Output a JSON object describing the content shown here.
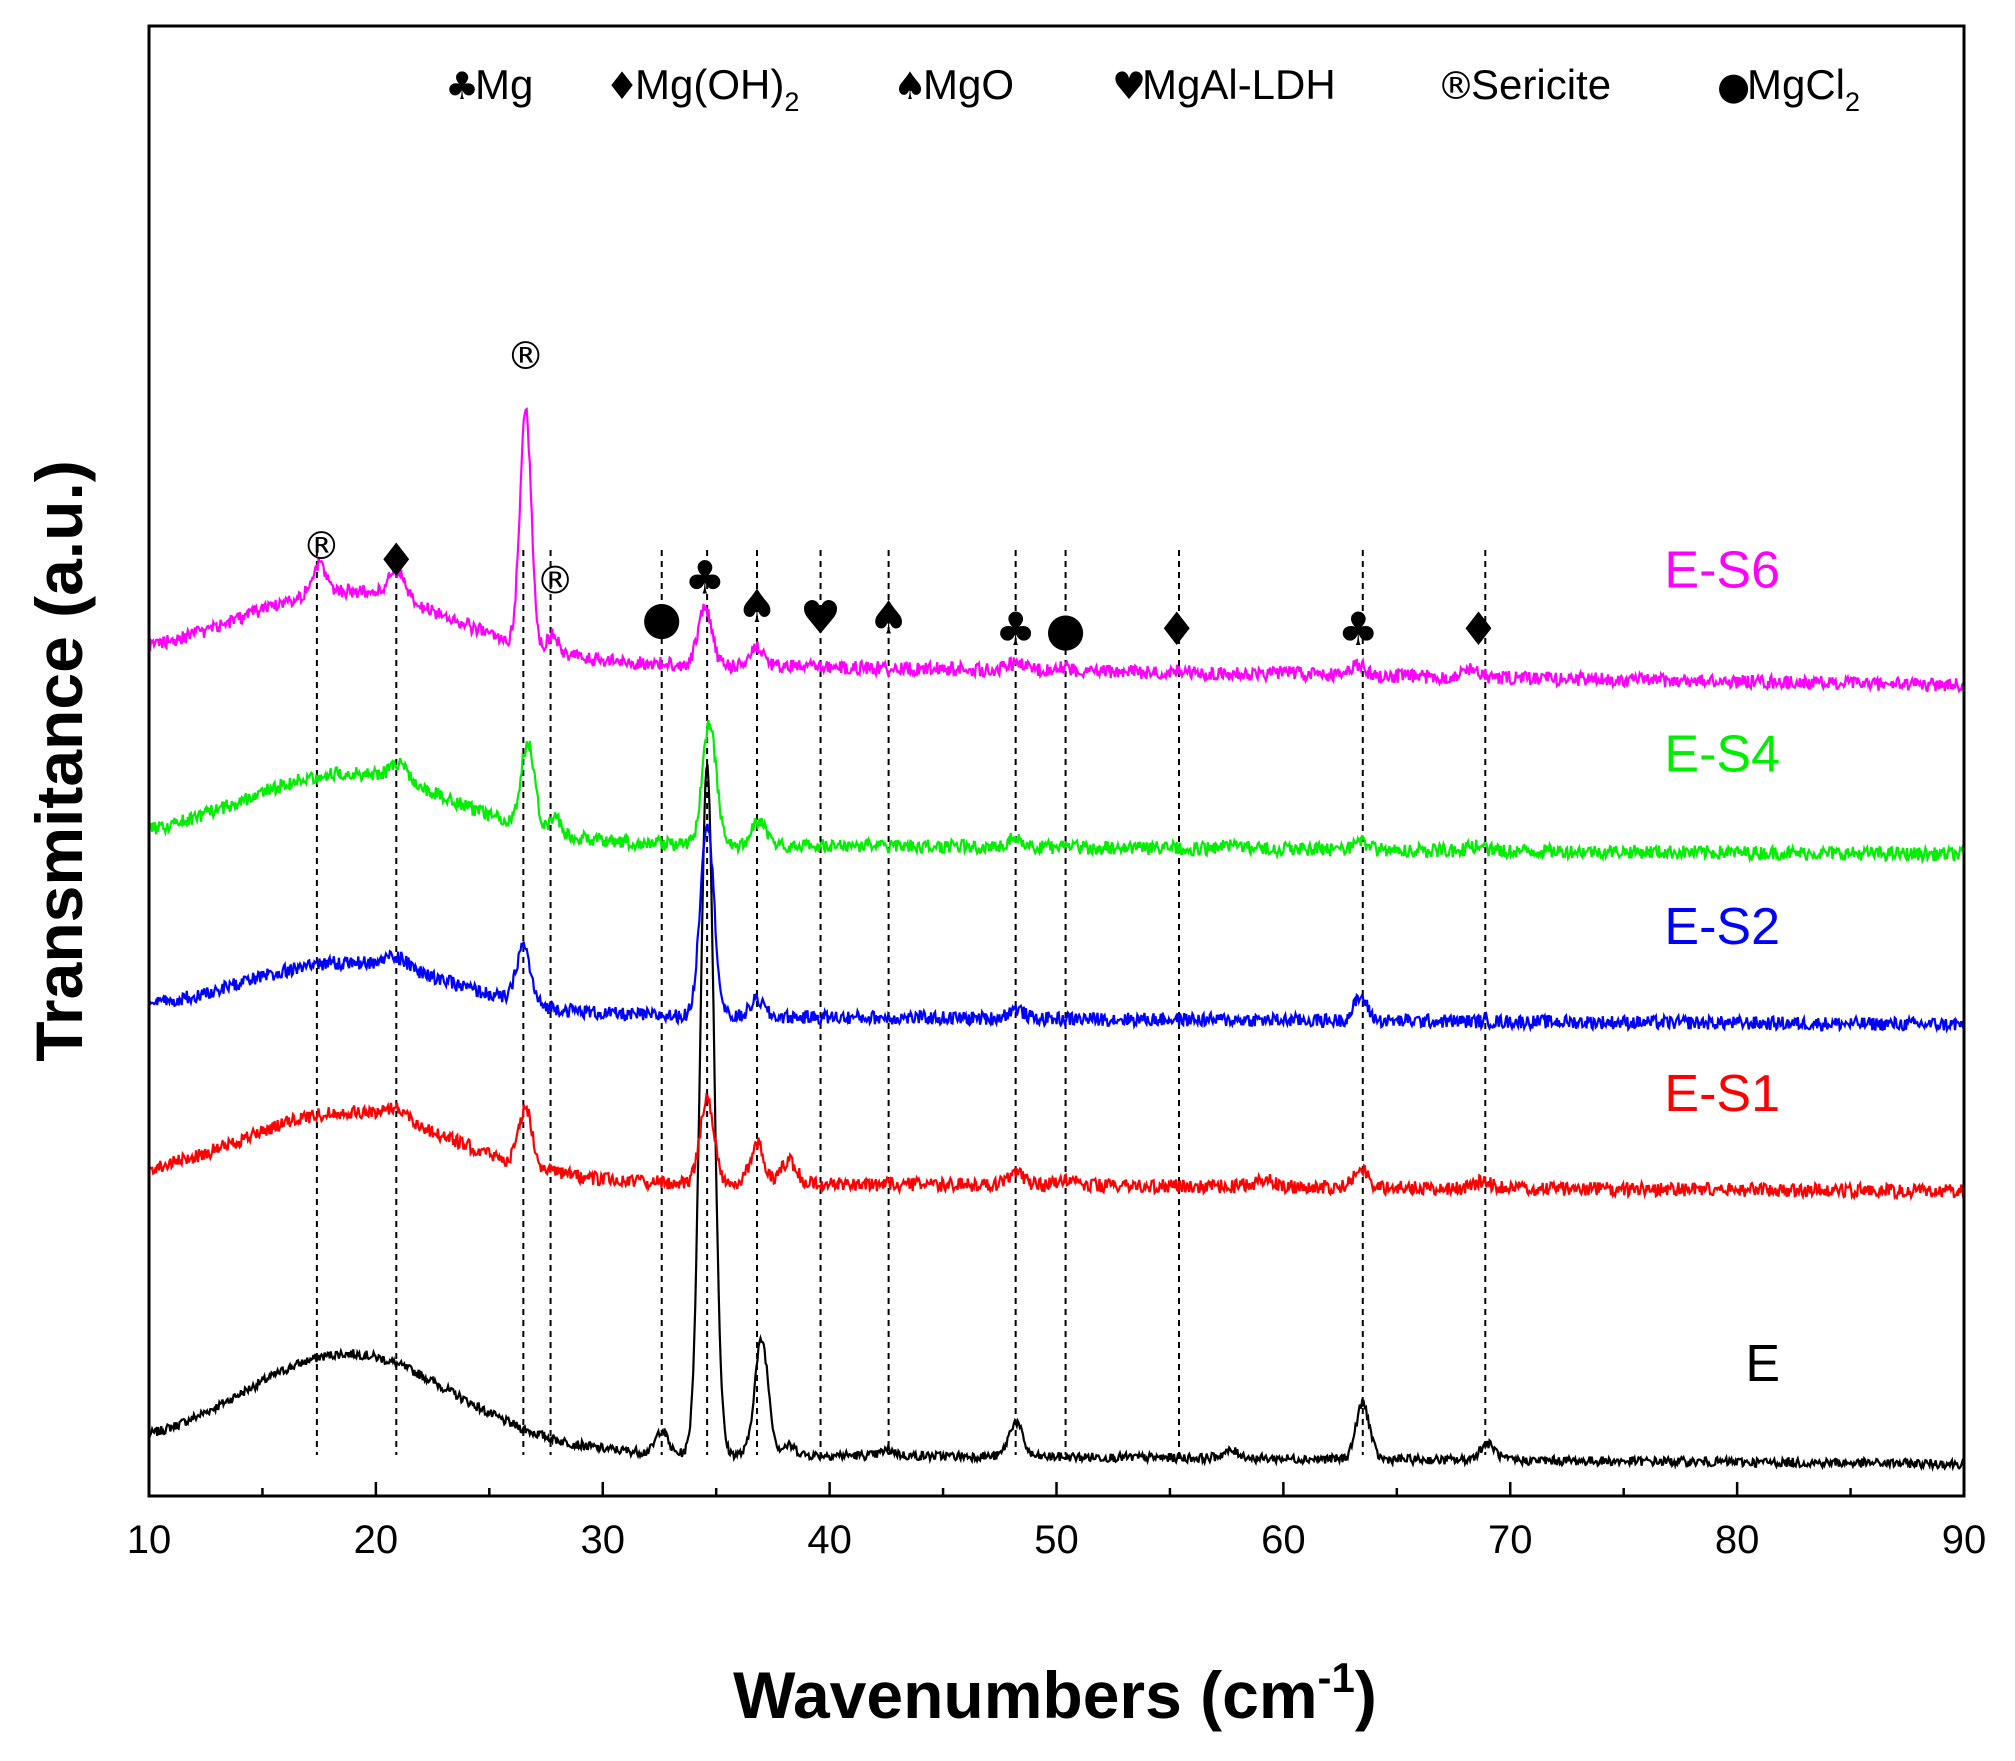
{
  "chart_data": {
    "type": "line",
    "title": "",
    "xlabel": "Wavenumbers (cm",
    "xlabel_sup": "-1",
    "xlabel_close": ")",
    "ylabel": "Transmitance (a.u.)",
    "xlim": [
      10,
      90
    ],
    "x_ticks": [
      "10",
      "20",
      "30",
      "40",
      "50",
      "60",
      "70",
      "80",
      "90"
    ],
    "y_ticks_shown": false,
    "grid": false,
    "legend_placement": "top",
    "legend": [
      {
        "symbol": "♣",
        "label": "Mg",
        "sub": ""
      },
      {
        "symbol": "♦",
        "label": "Mg(OH)",
        "sub": "2"
      },
      {
        "symbol": "♠",
        "label": "MgO",
        "sub": ""
      },
      {
        "symbol": "♥",
        "label": "MgAl-LDH",
        "sub": ""
      },
      {
        "symbol": "®",
        "label": "Sericite",
        "sub": ""
      },
      {
        "symbol": "●",
        "label": "MgCl",
        "sub": "2"
      }
    ],
    "series": [
      {
        "name": "E",
        "color": "#000000",
        "baseline": 0.0,
        "end": -0.012,
        "hump": 0.085,
        "noise": 0.004,
        "peaks": [
          [
            32.6,
            0.02,
            0.25
          ],
          [
            34.6,
            0.6,
            0.3
          ],
          [
            37.0,
            0.1,
            0.3
          ],
          [
            38.2,
            0.008,
            0.3
          ],
          [
            42.6,
            0.005,
            0.3
          ],
          [
            48.2,
            0.03,
            0.3
          ],
          [
            57.7,
            0.006,
            0.4
          ],
          [
            63.5,
            0.048,
            0.3
          ],
          [
            69.0,
            0.014,
            0.35
          ]
        ]
      },
      {
        "name": "E-S1",
        "color": "#ff0000",
        "baseline": 0.235,
        "end": 0.225,
        "hump": 0.06,
        "noise": 0.006,
        "peaks": [
          [
            20.9,
            0.01,
            0.5
          ],
          [
            26.6,
            0.05,
            0.3
          ],
          [
            34.6,
            0.075,
            0.3
          ],
          [
            36.8,
            0.035,
            0.3
          ],
          [
            38.2,
            0.02,
            0.35
          ],
          [
            48.2,
            0.012,
            0.35
          ],
          [
            50.4,
            0.006,
            0.35
          ],
          [
            59.2,
            0.006,
            0.4
          ],
          [
            63.4,
            0.018,
            0.3
          ],
          [
            68.8,
            0.006,
            0.35
          ]
        ]
      },
      {
        "name": "E-S2",
        "color": "#0000ff",
        "baseline": 0.38,
        "end": 0.37,
        "hump": 0.045,
        "noise": 0.006,
        "peaks": [
          [
            20.9,
            0.01,
            0.5
          ],
          [
            26.5,
            0.05,
            0.3
          ],
          [
            34.6,
            0.17,
            0.3
          ],
          [
            36.8,
            0.015,
            0.3
          ],
          [
            48.2,
            0.008,
            0.35
          ],
          [
            63.4,
            0.02,
            0.3
          ]
        ]
      },
      {
        "name": "E-S4",
        "color": "#00ee00",
        "baseline": 0.53,
        "end": 0.518,
        "hump": 0.06,
        "noise": 0.006,
        "peaks": [
          [
            21.0,
            0.015,
            0.4
          ],
          [
            26.7,
            0.075,
            0.3
          ],
          [
            27.9,
            0.015,
            0.25
          ],
          [
            34.7,
            0.105,
            0.3
          ],
          [
            36.9,
            0.022,
            0.3
          ],
          [
            48.2,
            0.008,
            0.35
          ],
          [
            57.8,
            0.004,
            0.4
          ],
          [
            63.4,
            0.006,
            0.3
          ],
          [
            68.5,
            0.004,
            0.35
          ]
        ]
      },
      {
        "name": "E-S6",
        "color": "#ff00ff",
        "baseline": 0.69,
        "end": 0.665,
        "hump": 0.06,
        "noise": 0.006,
        "peaks": [
          [
            17.5,
            0.025,
            0.3
          ],
          [
            20.9,
            0.025,
            0.35
          ],
          [
            26.6,
            0.205,
            0.25
          ],
          [
            27.8,
            0.015,
            0.25
          ],
          [
            34.5,
            0.05,
            0.3
          ],
          [
            36.8,
            0.017,
            0.3
          ],
          [
            48.2,
            0.006,
            0.35
          ],
          [
            50.2,
            0.004,
            0.35
          ],
          [
            55.3,
            0.002,
            0.35
          ],
          [
            60.1,
            0.003,
            0.4
          ],
          [
            63.3,
            0.01,
            0.3
          ],
          [
            68.3,
            0.008,
            0.35
          ]
        ]
      }
    ],
    "reference_lines": [
      17.4,
      20.9,
      26.5,
      27.7,
      32.6,
      34.6,
      36.8,
      39.6,
      42.6,
      48.2,
      50.4,
      55.4,
      63.5,
      68.9
    ],
    "annotations": [
      {
        "symbol": "®",
        "x": 17.6,
        "y": 0.775
      },
      {
        "symbol": "♦",
        "x": 20.9,
        "y": 0.76
      },
      {
        "symbol": "®",
        "x": 26.6,
        "y": 0.94
      },
      {
        "symbol": "®",
        "x": 27.9,
        "y": 0.745
      },
      {
        "symbol": "●",
        "x": 32.6,
        "y": 0.71
      },
      {
        "symbol": "♣",
        "x": 34.5,
        "y": 0.745
      },
      {
        "symbol": "♠",
        "x": 36.8,
        "y": 0.72
      },
      {
        "symbol": "♥",
        "x": 39.6,
        "y": 0.71
      },
      {
        "symbol": "♠",
        "x": 42.6,
        "y": 0.71
      },
      {
        "symbol": "♣",
        "x": 48.2,
        "y": 0.7
      },
      {
        "symbol": "●",
        "x": 50.4,
        "y": 0.7
      },
      {
        "symbol": "♦",
        "x": 55.3,
        "y": 0.7
      },
      {
        "symbol": "♣",
        "x": 63.3,
        "y": 0.7
      },
      {
        "symbol": "♦",
        "x": 68.6,
        "y": 0.7
      }
    ]
  }
}
